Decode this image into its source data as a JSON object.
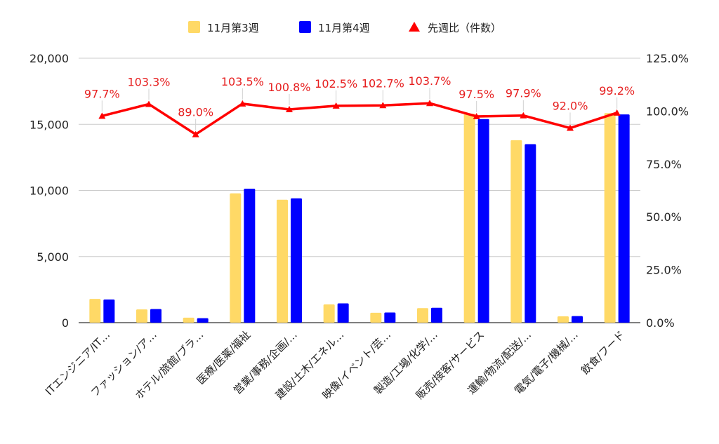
{
  "chart_data": {
    "type": "bar",
    "categories": [
      "ITエンジニア/IT…",
      "ファッション/ア…",
      "ホテル/旅館/ブラ…",
      "医療/医薬/福祉",
      "営業/事務/企画/…",
      "建設/土木/エネル…",
      "映像/イベント/芸…",
      "製造/工場/化学/…",
      "販売/接客/サービス",
      "運輸/物流/配送/…",
      "電気/電子/機械/…",
      "飲食/フード"
    ],
    "series": [
      {
        "name": "11月第3週",
        "kind": "bar",
        "axis": "left",
        "color": "#ffd966",
        "values": [
          1800,
          1000,
          380,
          9780,
          9300,
          1380,
          750,
          1100,
          15800,
          13800,
          480,
          15850
        ]
      },
      {
        "name": "11月第4週",
        "kind": "bar",
        "axis": "left",
        "color": "#0000ff",
        "values": [
          1750,
          1030,
          340,
          10130,
          9400,
          1460,
          770,
          1130,
          15400,
          13500,
          500,
          15750
        ]
      },
      {
        "name": "先週比（件数）",
        "kind": "line",
        "axis": "right",
        "color": "#ff0000",
        "values": [
          97.7,
          103.3,
          89.0,
          103.5,
          100.8,
          102.5,
          102.7,
          103.7,
          97.5,
          97.9,
          92.0,
          99.2
        ],
        "labels": [
          "97.7%",
          "103.3%",
          "89.0%",
          "103.5%",
          "100.8%",
          "102.5%",
          "102.7%",
          "103.7%",
          "97.5%",
          "97.9%",
          "92.0%",
          "99.2%"
        ]
      }
    ],
    "y_left": {
      "ylim": [
        0,
        20000
      ],
      "ticks": [
        "0",
        "5,000",
        "10,000",
        "15,000",
        "20,000"
      ]
    },
    "y_right": {
      "ylim": [
        0,
        125
      ],
      "ticks": [
        "0.0%",
        "25.0%",
        "50.0%",
        "75.0%",
        "100.0%",
        "125.0%"
      ]
    },
    "grid": true,
    "legend": "top"
  }
}
